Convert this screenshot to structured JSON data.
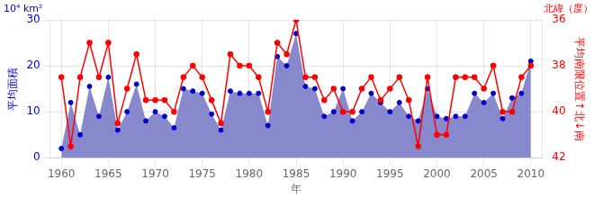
{
  "chart_data": {
    "type": "line",
    "xlabel": "年",
    "ylabel": "平均面積",
    "y2label": "平均南限位置↑北↓南",
    "annotations": [
      {
        "text": "10⁴ km²",
        "axis": "y"
      },
      {
        "text": "北緯（度）",
        "axis": "y2"
      }
    ],
    "x": [
      1960,
      1961,
      1962,
      1963,
      1964,
      1965,
      1966,
      1967,
      1968,
      1969,
      1970,
      1971,
      1972,
      1973,
      1974,
      1975,
      1976,
      1977,
      1978,
      1979,
      1980,
      1981,
      1982,
      1983,
      1984,
      1985,
      1986,
      1987,
      1988,
      1989,
      1990,
      1991,
      1992,
      1993,
      1994,
      1995,
      1996,
      1997,
      1998,
      1999,
      2000,
      2001,
      2002,
      2003,
      2004,
      2005,
      2006,
      2007,
      2008,
      2009,
      2010
    ],
    "series": [
      {
        "type": "area",
        "color": "#8888cc",
        "values": [
          2.0,
          12.0,
          5.0,
          15.5,
          9.0,
          17.5,
          6.0,
          10.0,
          16.0,
          8.0,
          10.0,
          9.0,
          6.5,
          15.0,
          14.5,
          14.0,
          9.5,
          6.0,
          14.5,
          14.0,
          14.0,
          14.0,
          7.0,
          22.0,
          20.0,
          27.0,
          15.5,
          15.0,
          9.0,
          10.0,
          15.0,
          8.0,
          10.0,
          14.0,
          12.0,
          10.0,
          12.0,
          9.0,
          8.0,
          15.0,
          9.0,
          8.5,
          9.0,
          9.0,
          14.0,
          12.0,
          14.0,
          8.5,
          13.0,
          14.0,
          21.0
        ]
      },
      {
        "type": "scatter",
        "color": "#0000cc",
        "marker": "circle",
        "values": [
          2.0,
          12.0,
          5.0,
          15.5,
          9.0,
          17.5,
          6.0,
          10.0,
          16.0,
          8.0,
          10.0,
          9.0,
          6.5,
          15.0,
          14.5,
          14.0,
          9.5,
          6.0,
          14.5,
          14.0,
          14.0,
          14.0,
          7.0,
          22.0,
          20.0,
          27.0,
          15.5,
          15.0,
          9.0,
          10.0,
          15.0,
          8.0,
          10.0,
          14.0,
          12.0,
          10.0,
          12.0,
          9.0,
          8.0,
          15.0,
          9.0,
          8.5,
          9.0,
          9.0,
          14.0,
          12.0,
          14.0,
          8.5,
          13.0,
          14.0,
          21.0
        ]
      },
      {
        "type": "line",
        "color": "#ff0000",
        "marker": "circle",
        "axis": "y2",
        "values": [
          38.5,
          41.5,
          38.5,
          37.0,
          38.5,
          37.0,
          40.5,
          39.0,
          37.5,
          39.5,
          39.5,
          39.5,
          40.0,
          38.5,
          38.0,
          38.5,
          39.5,
          40.5,
          37.5,
          38.0,
          38.0,
          38.5,
          40.0,
          37.0,
          37.5,
          36.0,
          38.5,
          38.5,
          39.5,
          39.0,
          40.0,
          40.0,
          39.0,
          38.5,
          39.5,
          39.0,
          38.5,
          39.5,
          41.5,
          38.5,
          41.0,
          41.0,
          38.5,
          38.5,
          38.5,
          39.0,
          38.0,
          40.0,
          40.0,
          38.5,
          38.0
        ]
      }
    ],
    "xlim": [
      1958.8,
      2011.2
    ],
    "xticks": [
      1960,
      1965,
      1970,
      1975,
      1980,
      1985,
      1990,
      1995,
      2000,
      2005,
      2010
    ],
    "ylim": [
      0,
      30
    ],
    "yticks": [
      0,
      10,
      20,
      30
    ],
    "y2lim": [
      42,
      36
    ],
    "y2ticks": [
      36,
      38,
      40,
      42
    ],
    "grid": true,
    "legend": false
  }
}
